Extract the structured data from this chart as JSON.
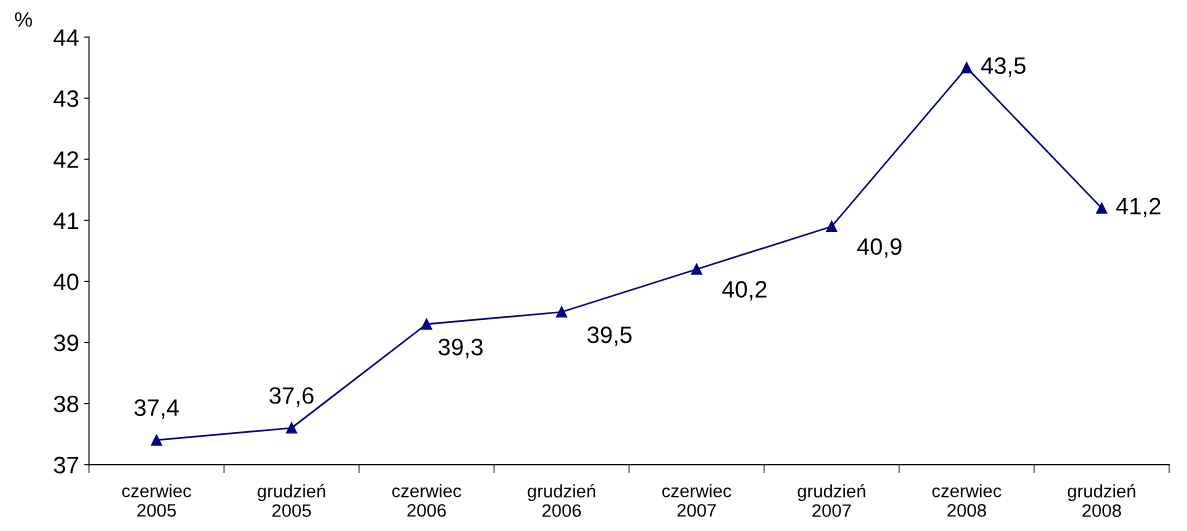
{
  "chart_data": {
    "type": "line",
    "ylabel": "%",
    "categories": [
      "czerwiec\n2005",
      "grudzień\n2005",
      "czerwiec\n2006",
      "grudzień\n2006",
      "czerwiec\n2007",
      "grudzień\n2007",
      "czerwiec\n2008",
      "grudzień\n2008"
    ],
    "series": [
      {
        "color": "#000080",
        "values": [
          37.4,
          37.6,
          39.3,
          39.5,
          40.2,
          40.9,
          43.5,
          41.2
        ],
        "value_labels": [
          "37,4",
          "37,6",
          "39,3",
          "39,5",
          "40,2",
          "40,9",
          "43,5",
          "41,2"
        ]
      }
    ],
    "ylim": [
      37,
      44
    ],
    "yticks": [
      37,
      38,
      39,
      40,
      41,
      42,
      43,
      44
    ],
    "grid": false,
    "legend": false,
    "marker": "triangle",
    "line_style": "solid"
  }
}
